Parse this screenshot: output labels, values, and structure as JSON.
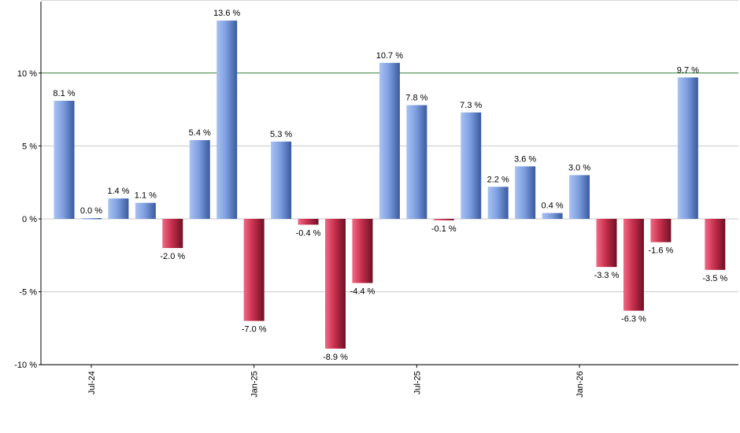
{
  "chart_data": {
    "type": "bar",
    "x": [
      "2024-06",
      "2024-07",
      "2024-08",
      "2024-09",
      "2024-10",
      "2024-11",
      "2024-12",
      "2025-01",
      "2025-02",
      "2025-03",
      "2025-04",
      "2025-05",
      "2025-06",
      "2025-07",
      "2025-08",
      "2025-09",
      "2025-10",
      "2025-11",
      "2025-12",
      "2026-01",
      "2026-02",
      "2026-03",
      "2026-04",
      "2026-05",
      "2026-06"
    ],
    "values": [
      8.1,
      0.0,
      1.4,
      1.1,
      -2.0,
      5.4,
      13.6,
      -7.0,
      5.3,
      -0.4,
      -8.9,
      -4.4,
      10.7,
      7.8,
      -0.1,
      7.3,
      2.2,
      3.6,
      0.4,
      3.0,
      -3.3,
      -6.3,
      -1.6,
      9.7,
      -3.5
    ],
    "data_labels": [
      "8.1 %",
      "0.0 %",
      "1.4 %",
      "1.1 %",
      "-2.0 %",
      "5.4 %",
      "13.6 %",
      "-7.0 %",
      "5.3 %",
      "-0.4 %",
      "-8.9 %",
      "-4.4 %",
      "10.7 %",
      "7.8 %",
      "-0.1 %",
      "7.3 %",
      "2.2 %",
      "3.6 %",
      "0.4 %",
      "3.0 %",
      "-3.3 %",
      "-6.3 %",
      "-1.6 %",
      "9.7 %",
      "-3.5 %"
    ],
    "ylim": [
      -10,
      15
    ],
    "y_ticks": [
      -10,
      -5,
      0,
      5,
      10
    ],
    "y_tick_labels": [
      "-10 %",
      "-5 %",
      "0 %",
      "5 %",
      "10 %"
    ],
    "x_tick_labels": [
      "Jul-24",
      "Jan-25",
      "Jul-25",
      "Jan-26"
    ],
    "x_tick_dates": [
      "2024-07",
      "2025-01",
      "2025-07",
      "2026-01"
    ],
    "reference_line": 10,
    "grid": true,
    "colors": {
      "positive": "#6f94dc",
      "negative": "#c8304e",
      "reference_line": "#2e7d32",
      "grid": "#c8c8c8"
    }
  }
}
